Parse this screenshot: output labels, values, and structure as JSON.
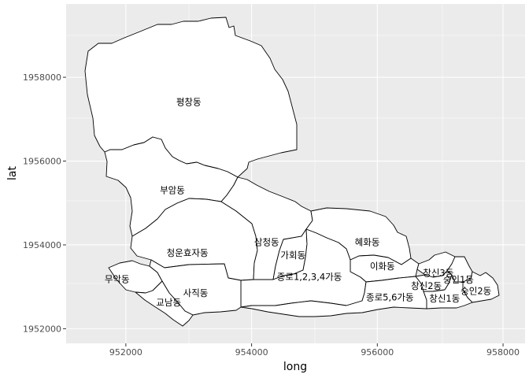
{
  "chart_data": {
    "type": "map",
    "xlabel": "long",
    "ylabel": "lat",
    "x_ticks": [
      952000,
      954000,
      956000,
      958000
    ],
    "y_ticks": [
      1952000,
      1954000,
      1956000,
      1958000
    ],
    "xlim": [
      951050,
      958350
    ],
    "ylim": [
      1951650,
      1959750
    ],
    "grid": true,
    "regions": [
      {
        "name": "평창동",
        "label_at": [
          953000,
          1957400
        ]
      },
      {
        "name": "부암동",
        "label_at": [
          952740,
          1955300
        ]
      },
      {
        "name": "청운효자동",
        "label_at": [
          952980,
          1953800
        ]
      },
      {
        "name": "삼청동",
        "label_at": [
          954240,
          1954060
        ]
      },
      {
        "name": "가회동",
        "label_at": [
          954660,
          1953750
        ]
      },
      {
        "name": "혜화동",
        "label_at": [
          955840,
          1954060
        ]
      },
      {
        "name": "이화동",
        "label_at": [
          956080,
          1953480
        ]
      },
      {
        "name": "종로1,2,3,4가동",
        "label_at": [
          954920,
          1953230
        ]
      },
      {
        "name": "무악동",
        "label_at": [
          951860,
          1953170
        ]
      },
      {
        "name": "사직동",
        "label_at": [
          953110,
          1952840
        ]
      },
      {
        "name": "교남동",
        "label_at": [
          952680,
          1952620
        ]
      },
      {
        "name": "종로5,6가동",
        "label_at": [
          956200,
          1952740
        ]
      },
      {
        "name": "창신3동",
        "label_at": [
          956970,
          1953320
        ]
      },
      {
        "name": "창신2동",
        "label_at": [
          956780,
          1953010
        ]
      },
      {
        "name": "숭인1동",
        "label_at": [
          957290,
          1953160
        ]
      },
      {
        "name": "숭인2동",
        "label_at": [
          957570,
          1952890
        ]
      },
      {
        "name": "창신1동",
        "label_at": [
          957070,
          1952710
        ]
      }
    ]
  }
}
